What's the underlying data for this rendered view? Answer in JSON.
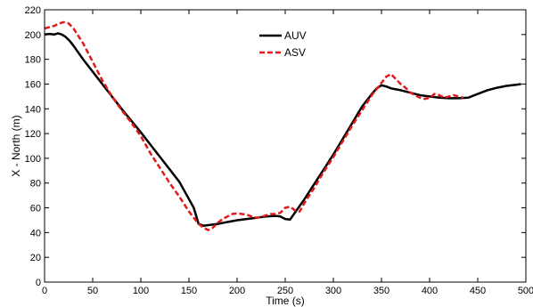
{
  "chart_data": {
    "type": "line",
    "xlabel": "Time (s)",
    "ylabel": "X - North (m)",
    "xlim": [
      0,
      500
    ],
    "ylim": [
      0,
      220
    ],
    "xticks": [
      0,
      50,
      100,
      150,
      200,
      250,
      300,
      350,
      400,
      450,
      500
    ],
    "yticks": [
      0,
      20,
      40,
      60,
      80,
      100,
      120,
      140,
      160,
      180,
      200,
      220
    ],
    "grid": false,
    "legend_position": "top-center",
    "series": [
      {
        "name": "AUV",
        "color": "#000000",
        "style": "solid",
        "x": [
          0,
          5,
          10,
          14,
          18,
          22,
          26,
          30,
          40,
          60,
          80,
          100,
          120,
          140,
          155,
          160,
          165,
          170,
          180,
          190,
          200,
          210,
          220,
          230,
          240,
          245,
          250,
          255,
          260,
          270,
          280,
          290,
          300,
          310,
          320,
          330,
          340,
          345,
          350,
          355,
          360,
          370,
          380,
          390,
          400,
          410,
          420,
          430,
          440,
          450,
          460,
          470,
          480,
          490,
          495
        ],
        "y": [
          200,
          200.5,
          200,
          201,
          200,
          198,
          195,
          191,
          180,
          160,
          140,
          121,
          101,
          81,
          60,
          47,
          45.5,
          46,
          47,
          48.5,
          50,
          51,
          52,
          53,
          53.5,
          53,
          51,
          50.5,
          56,
          67,
          79,
          91,
          103,
          116,
          129,
          142,
          152,
          156.5,
          159,
          158,
          156.5,
          155,
          153,
          151,
          150,
          149,
          148.5,
          148.5,
          149,
          152,
          155,
          157,
          158.5,
          159.5,
          160
        ]
      },
      {
        "name": "ASV",
        "color": "#e31a1a",
        "style": "dashed",
        "x": [
          0,
          5,
          10,
          15,
          20,
          25,
          30,
          40,
          50,
          60,
          70,
          80,
          90,
          100,
          110,
          120,
          130,
          140,
          150,
          160,
          165,
          170,
          175,
          180,
          185,
          190,
          195,
          200,
          205,
          210,
          215,
          220,
          225,
          230,
          235,
          240,
          245,
          250,
          255,
          260,
          265,
          270,
          280,
          290,
          300,
          310,
          320,
          330,
          340,
          350,
          355,
          360,
          365,
          370,
          375,
          380,
          385,
          390,
          395,
          400,
          405,
          410,
          415,
          420,
          425,
          430,
          435
        ],
        "y": [
          205,
          206,
          207,
          209,
          210,
          209,
          205,
          193,
          178,
          163,
          150,
          139,
          129,
          118,
          104,
          92,
          80,
          69,
          57,
          47,
          44,
          42,
          44,
          48,
          51,
          53,
          55,
          55.5,
          55,
          54.5,
          53,
          52,
          52.5,
          54,
          55,
          55,
          56,
          60,
          61,
          58,
          57,
          64,
          76,
          89,
          101,
          114,
          127,
          139,
          151,
          161,
          166,
          168,
          164,
          160,
          157,
          153,
          151,
          149,
          148,
          149,
          152,
          151,
          149,
          150,
          151,
          150,
          149
        ]
      }
    ]
  }
}
